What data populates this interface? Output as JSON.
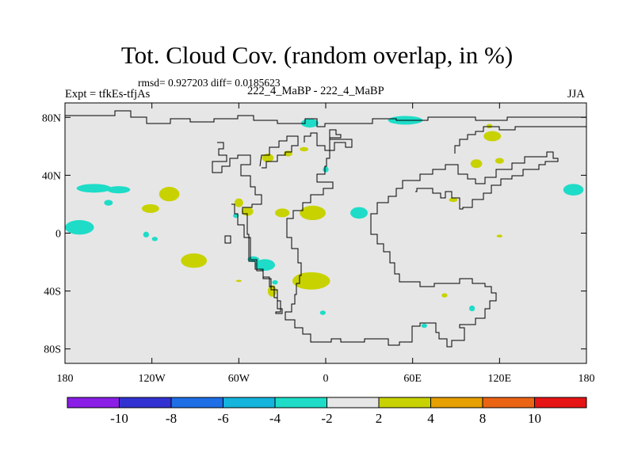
{
  "title": "Tot. Cloud Cov. (random overlap, in %)",
  "stats": "rmsd= 0.927203 diff= 0.0185623",
  "left_label": "Expt = tfkEs-tfjAs",
  "center_label": "222_4_MaBP - 222_4_MaBP",
  "right_label": "JJA",
  "axes": {
    "x_ticks": [
      {
        "value": -180,
        "label": "180"
      },
      {
        "value": -120,
        "label": "120W"
      },
      {
        "value": -60,
        "label": "60W"
      },
      {
        "value": 0,
        "label": "0"
      },
      {
        "value": 60,
        "label": "60E"
      },
      {
        "value": 120,
        "label": "120E"
      },
      {
        "value": 180,
        "label": "180"
      }
    ],
    "y_ticks": [
      {
        "value": 80,
        "label": "80N"
      },
      {
        "value": 40,
        "label": "40N"
      },
      {
        "value": 0,
        "label": "0"
      },
      {
        "value": -40,
        "label": "40S"
      },
      {
        "value": -80,
        "label": "80S"
      }
    ],
    "lon_range": [
      -180,
      180
    ],
    "lat_range": [
      -90,
      90
    ]
  },
  "colorbar": {
    "colors": [
      "#8a1ee6",
      "#3232d2",
      "#1e6ee6",
      "#14b4dc",
      "#1edcc8",
      "#e6e6e6",
      "#c8d200",
      "#e6a000",
      "#eb6414",
      "#e61414"
    ],
    "labels": [
      {
        "boundary": 1,
        "text": "-10"
      },
      {
        "boundary": 2,
        "text": "-8"
      },
      {
        "boundary": 3,
        "text": "-6"
      },
      {
        "boundary": 4,
        "text": "-4"
      },
      {
        "boundary": 5,
        "text": "-2"
      },
      {
        "boundary": 6,
        "text": "2"
      },
      {
        "boundary": 7,
        "text": "4"
      },
      {
        "boundary": 8,
        "text": "8"
      },
      {
        "boundary": 9,
        "text": "10"
      }
    ]
  },
  "colors": {
    "background": "#e6e6e6",
    "negative": "#1edcc8",
    "positive": "#c8d200",
    "coast": "#000000"
  },
  "patches": [
    {
      "sign": "neg",
      "lon": -11,
      "lat": 76,
      "rlon": 6,
      "rlat": 3
    },
    {
      "sign": "neg",
      "lon": 55,
      "lat": 78,
      "rlon": 12,
      "rlat": 3
    },
    {
      "sign": "pos",
      "lon": 113,
      "lat": 74,
      "rlon": 2,
      "rlat": 1.5
    },
    {
      "sign": "pos",
      "lon": 115,
      "lat": 67,
      "rlon": 6,
      "rlat": 3.5
    },
    {
      "sign": "pos",
      "lon": -40,
      "lat": 52,
      "rlon": 4,
      "rlat": 3
    },
    {
      "sign": "pos",
      "lon": -26,
      "lat": 55,
      "rlon": 3,
      "rlat": 2
    },
    {
      "sign": "pos",
      "lon": -15,
      "lat": 58,
      "rlon": 3,
      "rlat": 1.5
    },
    {
      "sign": "neg",
      "lon": 0,
      "lat": 44,
      "rlon": 2,
      "rlat": 2
    },
    {
      "sign": "pos",
      "lon": 104,
      "lat": 48,
      "rlon": 4,
      "rlat": 3
    },
    {
      "sign": "pos",
      "lon": 120,
      "lat": 50,
      "rlon": 3,
      "rlat": 2
    },
    {
      "sign": "neg",
      "lon": 171,
      "lat": 30,
      "rlon": 7,
      "rlat": 4
    },
    {
      "sign": "neg",
      "lon": -160,
      "lat": 31,
      "rlon": 12,
      "rlat": 3
    },
    {
      "sign": "neg",
      "lon": -143,
      "lat": 30,
      "rlon": 8,
      "rlat": 2.5
    },
    {
      "sign": "pos",
      "lon": -108,
      "lat": 27,
      "rlon": 7,
      "rlat": 5
    },
    {
      "sign": "pos",
      "lon": -121,
      "lat": 17,
      "rlon": 6,
      "rlat": 3
    },
    {
      "sign": "neg",
      "lon": -150,
      "lat": 21,
      "rlon": 3,
      "rlat": 2
    },
    {
      "sign": "pos",
      "lon": -60,
      "lat": 21,
      "rlon": 3,
      "rlat": 3
    },
    {
      "sign": "pos",
      "lon": -54,
      "lat": 15,
      "rlon": 4,
      "rlat": 3
    },
    {
      "sign": "neg",
      "lon": -62,
      "lat": 12,
      "rlon": 2,
      "rlat": 1.5
    },
    {
      "sign": "pos",
      "lon": -30,
      "lat": 14,
      "rlon": 5,
      "rlat": 3
    },
    {
      "sign": "pos",
      "lon": -9,
      "lat": 14,
      "rlon": 9,
      "rlat": 5
    },
    {
      "sign": "neg",
      "lon": 23,
      "lat": 14,
      "rlon": 6,
      "rlat": 4
    },
    {
      "sign": "pos",
      "lon": 88,
      "lat": 23,
      "rlon": 3,
      "rlat": 1.5
    },
    {
      "sign": "neg",
      "lon": -170,
      "lat": 4,
      "rlon": 10,
      "rlat": 5
    },
    {
      "sign": "neg",
      "lon": -124,
      "lat": -1,
      "rlon": 2,
      "rlat": 2
    },
    {
      "sign": "neg",
      "lon": -118,
      "lat": -4,
      "rlon": 2,
      "rlat": 1.5
    },
    {
      "sign": "pos",
      "lon": 120,
      "lat": -2,
      "rlon": 2,
      "rlat": 1
    },
    {
      "sign": "pos",
      "lon": -91,
      "lat": -19,
      "rlon": 9,
      "rlat": 5
    },
    {
      "sign": "neg",
      "lon": -42,
      "lat": -22,
      "rlon": 7,
      "rlat": 4
    },
    {
      "sign": "neg",
      "lon": -50,
      "lat": -18,
      "rlon": 4,
      "rlat": 2
    },
    {
      "sign": "pos",
      "lon": -10,
      "lat": -33,
      "rlon": 13,
      "rlat": 6
    },
    {
      "sign": "pos",
      "lon": -37,
      "lat": -40,
      "rlon": 3,
      "rlat": 4
    },
    {
      "sign": "neg",
      "lon": -35,
      "lat": -34,
      "rlon": 2,
      "rlat": 1.5
    },
    {
      "sign": "pos",
      "lon": -60,
      "lat": -33,
      "rlon": 2,
      "rlat": 0.7
    },
    {
      "sign": "pos",
      "lon": 82,
      "lat": -43,
      "rlon": 2,
      "rlat": 1.5
    },
    {
      "sign": "neg",
      "lon": 101,
      "lat": -52,
      "rlon": 2,
      "rlat": 2
    },
    {
      "sign": "neg",
      "lon": -2,
      "lat": -55,
      "rlon": 2,
      "rlat": 1.5
    },
    {
      "sign": "neg",
      "lon": 68,
      "lat": -64,
      "rlon": 2,
      "rlat": 1.5
    }
  ]
}
